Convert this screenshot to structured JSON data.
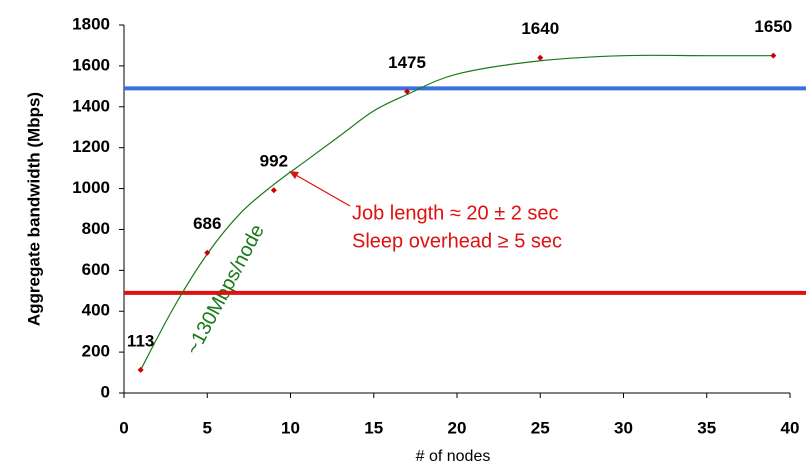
{
  "chart_data": {
    "type": "scatter",
    "xlabel": "# of nodes",
    "ylabel": "Aggregate bandwidth (Mbps)",
    "xlim": [
      0,
      40
    ],
    "xticks": [
      0,
      5,
      10,
      15,
      20,
      25,
      30,
      35,
      40
    ],
    "ylim": [
      0,
      1800
    ],
    "yticks": [
      0,
      200,
      400,
      600,
      800,
      1000,
      1200,
      1400,
      1600,
      1800
    ],
    "series": [
      {
        "name": "Aggregate bandwidth",
        "color": "#cc0000",
        "x": [
          1,
          5,
          9,
          17,
          25,
          39
        ],
        "values": [
          113,
          686,
          992,
          1475,
          1640,
          1650
        ]
      }
    ],
    "trend": {
      "color": "#1a7a1a",
      "x": [
        1,
        3,
        5,
        7,
        9,
        11,
        13,
        15,
        17,
        20,
        25,
        30,
        35,
        39
      ],
      "values": [
        113,
        420,
        680,
        880,
        1020,
        1140,
        1260,
        1380,
        1460,
        1560,
        1625,
        1650,
        1650,
        1650
      ]
    },
    "reference_lines": [
      {
        "value": 1490,
        "color": "#3a6fe0"
      },
      {
        "value": 490,
        "color": "#e01010"
      }
    ],
    "annotations": {
      "job_length": "Job length ≈ 20 ± 2 sec",
      "sleep_overhead": "Sleep overhead ≥ 5 sec",
      "slope": "~130Mbps/node"
    }
  }
}
